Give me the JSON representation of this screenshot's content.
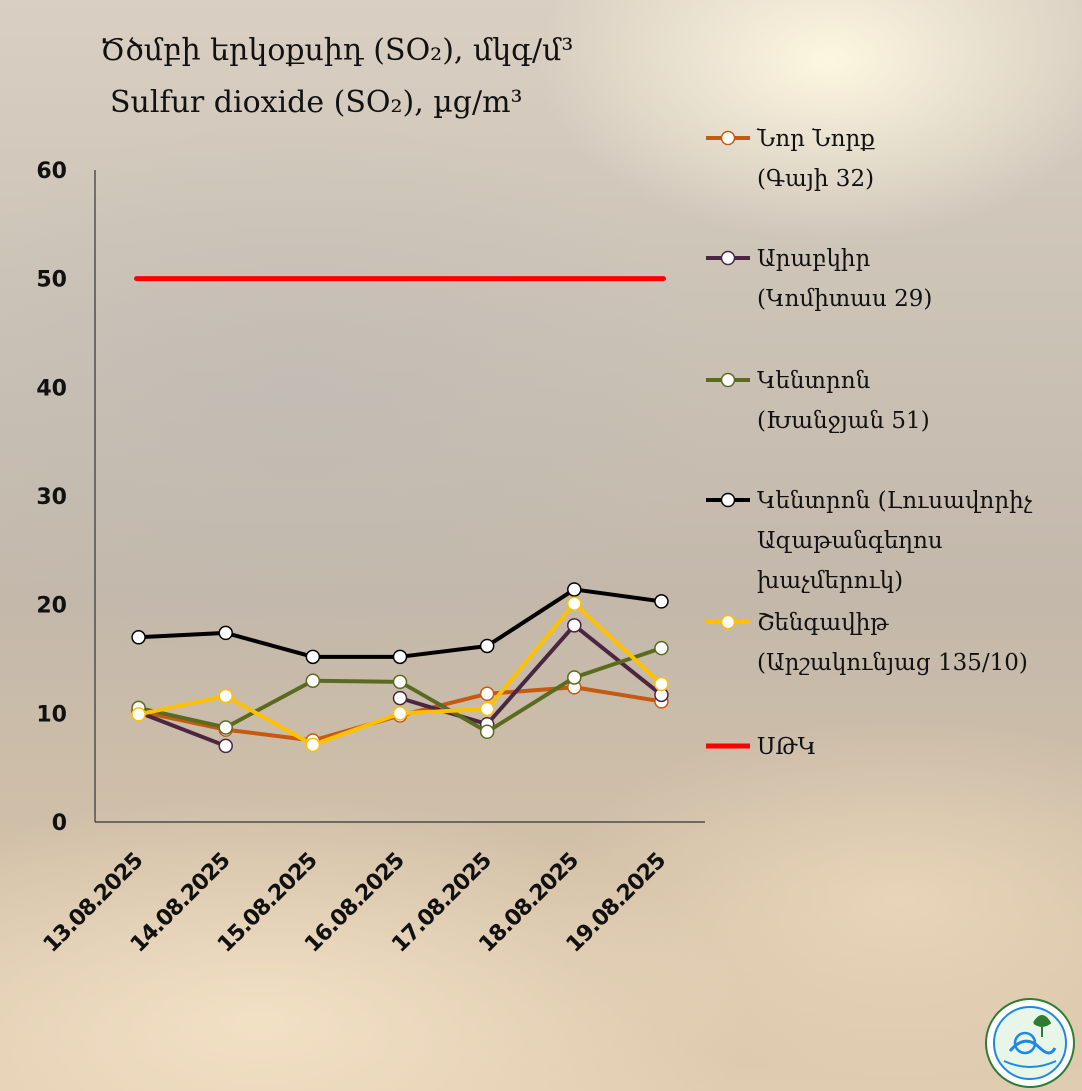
{
  "chart_data": {
    "type": "line",
    "title": "Ծծմբի երկօքսիդ (SO₂), մկգ/մ³",
    "subtitle": "Sulfur dioxide (SO₂), µg/m³",
    "x": [
      "13.08.2025",
      "14.08.2025",
      "15.08.2025",
      "16.08.2025",
      "17.08.2025",
      "18.08.2025",
      "19.08.2025"
    ],
    "ylim": [
      0,
      60
    ],
    "yticks": [
      0,
      10,
      20,
      30,
      40,
      50,
      60
    ],
    "grid": false,
    "legend_position": "right",
    "series": [
      {
        "name_lines": [
          "Նոր Նորք",
          "(Գայի 32)"
        ],
        "color": "#c55a11",
        "marker": true,
        "values": [
          10.2,
          8.5,
          7.5,
          9.8,
          11.8,
          12.4,
          11.1
        ]
      },
      {
        "name_lines": [
          "Արաբկիր",
          "(Կոմիտաս 29)"
        ],
        "color": "#4b2642",
        "marker": true,
        "values": [
          10.1,
          7.0,
          null,
          11.4,
          9.0,
          18.1,
          11.7
        ]
      },
      {
        "name_lines": [
          "Կենտրոն",
          "(Խանջյան 51)"
        ],
        "color": "#5a6a1f",
        "marker": true,
        "values": [
          10.5,
          8.7,
          13.0,
          12.9,
          8.3,
          13.3,
          16.0
        ]
      },
      {
        "name_lines": [
          "Կենտրոն (Լուսավորիչ",
          "Ազաթանգեղոս",
          "խաչմերուկ)"
        ],
        "color": "#000000",
        "marker": true,
        "values": [
          17.0,
          17.4,
          15.2,
          15.2,
          16.2,
          21.4,
          20.3
        ]
      },
      {
        "name_lines": [
          "Շենգավիթ",
          "(Արշակունյաց 135/10)"
        ],
        "color": "#ffc000",
        "marker": true,
        "values": [
          9.9,
          11.6,
          7.1,
          10.0,
          10.4,
          20.1,
          12.7
        ]
      },
      {
        "name_lines": [
          "ՍԹԿ"
        ],
        "color": "#ff0000",
        "marker": false,
        "values": [
          50,
          50,
          50,
          50,
          50,
          50,
          50
        ]
      }
    ]
  }
}
